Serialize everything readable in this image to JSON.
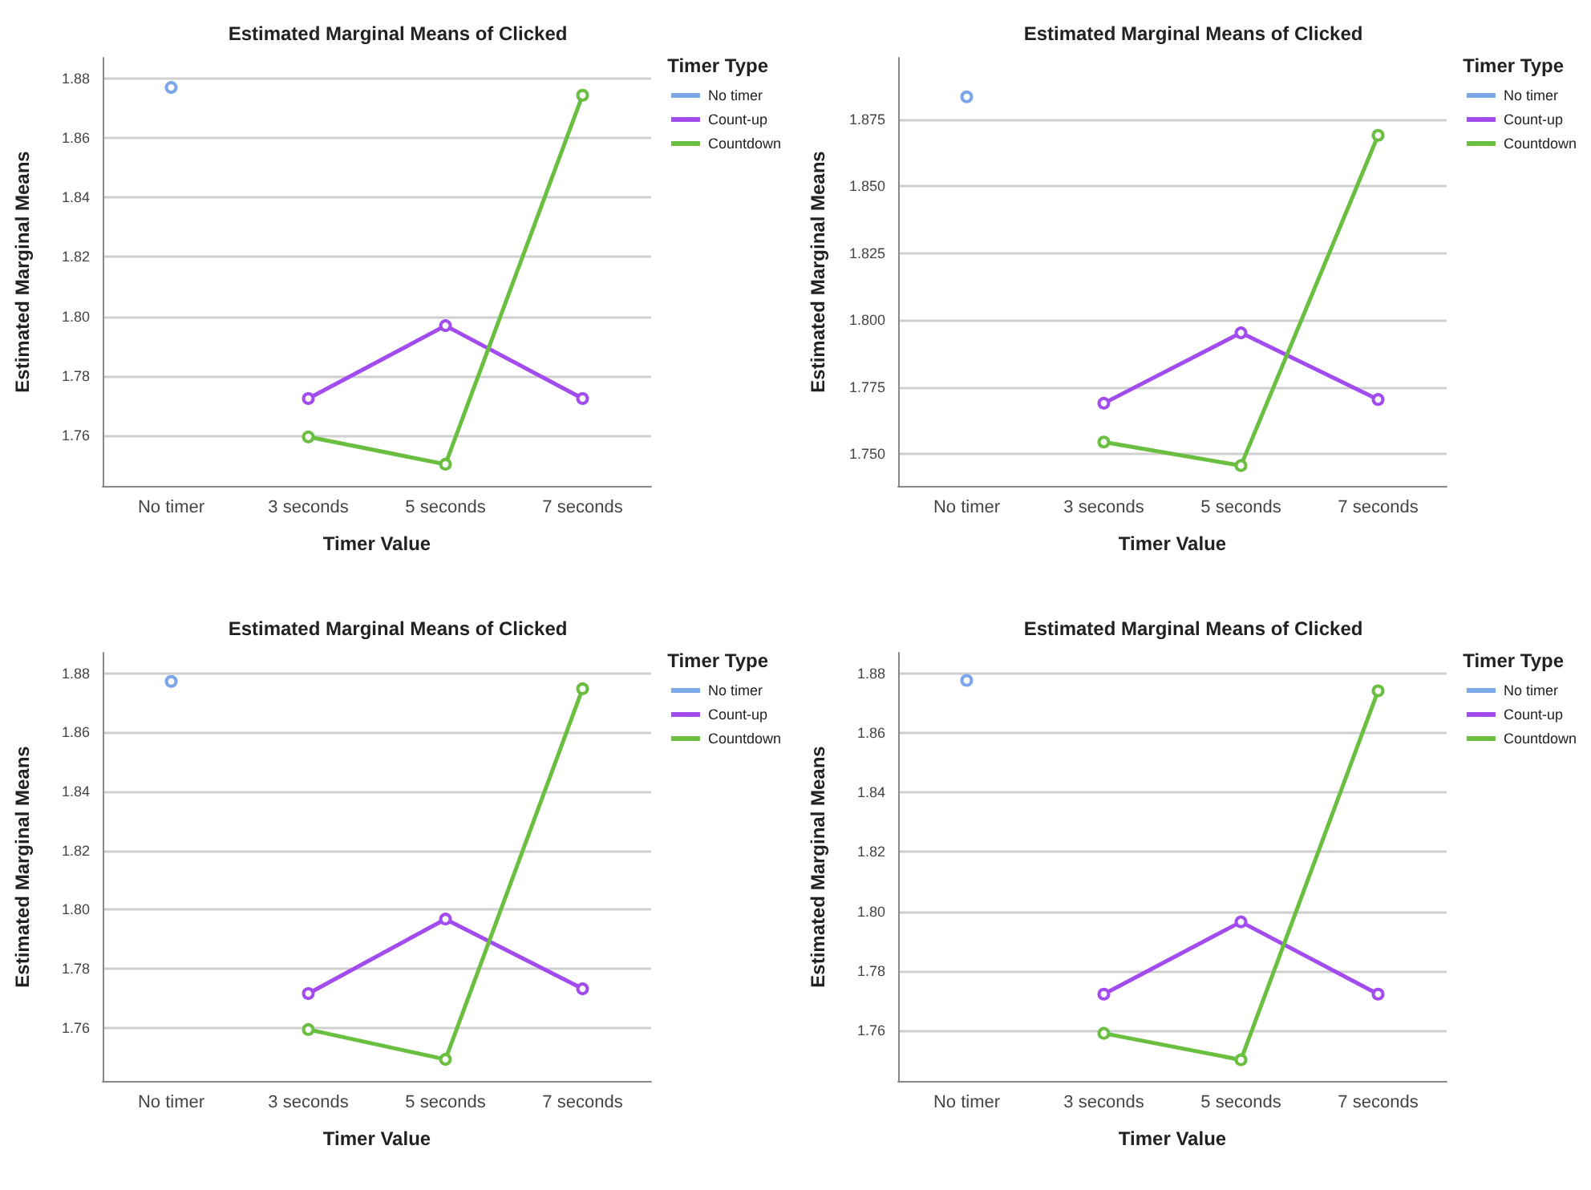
{
  "chart_data": [
    {
      "type": "line",
      "title": "Estimated Marginal Means of Clicked",
      "xlabel": "Timer Value",
      "ylabel": "Estimated Marginal Means",
      "legend_title": "Timer Type",
      "categories": [
        "No timer",
        "3 seconds",
        "5 seconds",
        "7 seconds"
      ],
      "ylim": [
        1.743,
        1.887
      ],
      "yticks": [
        1.76,
        1.78,
        {
          "value": 1.8,
          "label": "1.80"
        },
        1.82,
        1.84,
        1.86,
        1.88
      ],
      "grid": "y",
      "legend": "top right",
      "marker": "circle",
      "series": [
        {
          "name": "No timer",
          "color": "#7ba7e8",
          "values": [
            1.877,
            null,
            null,
            null
          ]
        },
        {
          "name": "Count-up",
          "color": "#a24cf0",
          "values": [
            null,
            1.7724,
            1.7969,
            1.7724
          ]
        },
        {
          "name": "Countdown",
          "color": "#6abf40",
          "values": [
            null,
            1.7595,
            1.7503,
            1.8744
          ]
        }
      ]
    },
    {
      "type": "line",
      "title": "Estimated Marginal Means of Clicked",
      "xlabel": "Timer Value",
      "ylabel": "Estimated Marginal Means",
      "legend_title": "Timer Type",
      "categories": [
        "No timer",
        "3 seconds",
        "5 seconds",
        "7 seconds"
      ],
      "ylim": [
        1.738,
        1.898
      ],
      "yticks": [
        {
          "value": 1.75,
          "label": "1.750"
        },
        1.775,
        {
          "value": 1.8,
          "label": "1.800"
        },
        1.825,
        {
          "value": 1.85,
          "label": "1.850"
        },
        1.875
      ],
      "grid": "y",
      "legend": "top right",
      "marker": "circle",
      "series": [
        {
          "name": "No timer",
          "color": "#7ba7e8",
          "values": [
            1.8834,
            null,
            null,
            null
          ]
        },
        {
          "name": "Count-up",
          "color": "#a24cf0",
          "values": [
            null,
            1.7689,
            1.7952,
            1.7703
          ]
        },
        {
          "name": "Countdown",
          "color": "#6abf40",
          "values": [
            null,
            1.7544,
            1.7456,
            1.869
          ]
        }
      ]
    },
    {
      "type": "line",
      "title": "Estimated Marginal Means of Clicked",
      "xlabel": "Timer Value",
      "ylabel": "Estimated Marginal Means",
      "legend_title": "Timer Type",
      "categories": [
        "No timer",
        "3 seconds",
        "5 seconds",
        "7 seconds"
      ],
      "ylim": [
        1.742,
        1.887
      ],
      "yticks": [
        1.76,
        1.78,
        {
          "value": 1.8,
          "label": "1.80"
        },
        1.82,
        1.84,
        1.86,
        1.88
      ],
      "grid": "y",
      "legend": "top right",
      "marker": "circle",
      "series": [
        {
          "name": "No timer",
          "color": "#7ba7e8",
          "values": [
            1.8773,
            null,
            null,
            null
          ]
        },
        {
          "name": "Count-up",
          "color": "#a24cf0",
          "values": [
            null,
            1.7716,
            1.7968,
            1.7732
          ]
        },
        {
          "name": "Countdown",
          "color": "#6abf40",
          "values": [
            null,
            1.7594,
            1.7493,
            1.8748
          ]
        }
      ]
    },
    {
      "type": "line",
      "title": "Estimated Marginal Means of Clicked",
      "xlabel": "Timer Value",
      "ylabel": "Estimated Marginal Means",
      "legend_title": "Timer Type",
      "categories": [
        "No timer",
        "3 seconds",
        "5 seconds",
        "7 seconds"
      ],
      "ylim": [
        1.743,
        1.887
      ],
      "yticks": [
        1.76,
        1.78,
        {
          "value": 1.8,
          "label": "1.80"
        },
        1.82,
        1.84,
        1.86,
        1.88
      ],
      "grid": "y",
      "legend": "top right",
      "marker": "circle",
      "series": [
        {
          "name": "No timer",
          "color": "#7ba7e8",
          "values": [
            1.8777,
            null,
            null,
            null
          ]
        },
        {
          "name": "Count-up",
          "color": "#a24cf0",
          "values": [
            null,
            1.7722,
            1.7965,
            1.7722
          ]
        },
        {
          "name": "Countdown",
          "color": "#6abf40",
          "values": [
            null,
            1.759,
            1.7501,
            1.8742
          ]
        }
      ]
    }
  ]
}
